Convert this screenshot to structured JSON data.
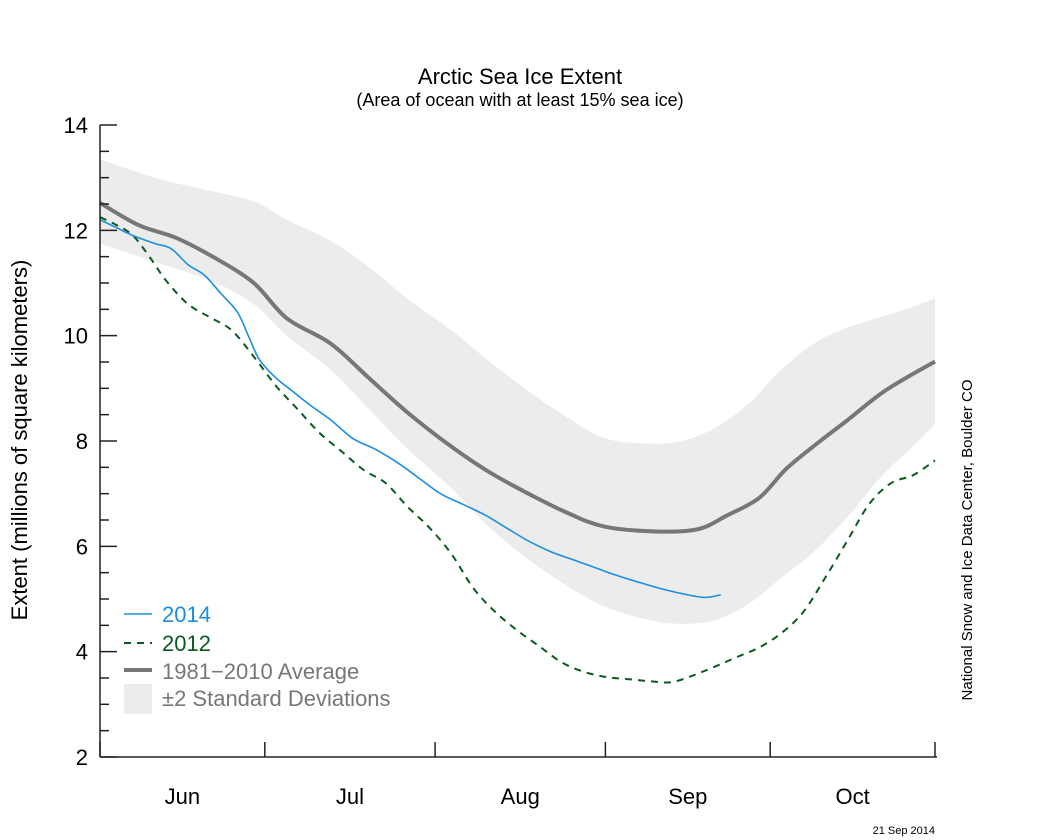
{
  "chart_data": {
    "type": "line",
    "title": "Arctic Sea Ice Extent",
    "subtitle": "(Area of ocean with at least 15% sea ice)",
    "xlabel": "",
    "ylabel": "Extent (millions of square kilometers)",
    "x_unit": "days since Jun 1",
    "xlim": [
      0,
      152
    ],
    "ylim": [
      2,
      14
    ],
    "y_major_ticks": [
      2,
      4,
      6,
      8,
      10,
      12,
      14
    ],
    "y_minor_step": 0.5,
    "x_ticks": [
      0,
      30,
      61,
      92,
      122,
      152
    ],
    "x_tick_labels": [
      {
        "label": "Jun",
        "center": 15
      },
      {
        "label": "Jul",
        "center": 45.5
      },
      {
        "label": "Aug",
        "center": 76.5
      },
      {
        "label": "Sep",
        "center": 107
      },
      {
        "label": "Oct",
        "center": 137
      }
    ],
    "grid": false,
    "legend_position": "bottom-left",
    "credit": "National Snow and Ice Data Center, Boulder CO",
    "date_stamp": "21 Sep 2014",
    "colors": {
      "2014": "#1a8fe3",
      "2012": "#0b5a1f",
      "average": "#777777",
      "band": "#ececec"
    },
    "series": [
      {
        "name": "2014",
        "style": "solid",
        "x": [
          0,
          3,
          6,
          10,
          13,
          16,
          19,
          22,
          25,
          27,
          29,
          32,
          35,
          38,
          42,
          46,
          50,
          54,
          58,
          62,
          66,
          70,
          74,
          78,
          82,
          86,
          90,
          94,
          98,
          102,
          106,
          110,
          113
        ],
        "y": [
          12.2,
          12.05,
          11.9,
          11.75,
          11.65,
          11.35,
          11.15,
          10.8,
          10.45,
          10.0,
          9.55,
          9.2,
          8.95,
          8.7,
          8.4,
          8.05,
          7.85,
          7.6,
          7.3,
          7.0,
          6.8,
          6.6,
          6.35,
          6.1,
          5.9,
          5.75,
          5.6,
          5.45,
          5.32,
          5.2,
          5.1,
          5.03,
          5.08
        ]
      },
      {
        "name": "2012",
        "style": "dashed",
        "x": [
          0,
          3,
          6,
          9,
          12,
          16,
          20,
          24,
          28,
          32,
          36,
          40,
          44,
          48,
          52,
          56,
          60,
          64,
          68,
          72,
          76,
          80,
          84,
          88,
          92,
          96,
          100,
          104,
          108,
          112,
          116,
          120,
          124,
          128,
          132,
          136,
          140,
          144,
          148,
          152
        ],
        "y": [
          12.25,
          12.1,
          11.9,
          11.5,
          11.05,
          10.6,
          10.35,
          10.1,
          9.6,
          9.05,
          8.6,
          8.15,
          7.8,
          7.45,
          7.2,
          6.75,
          6.35,
          5.85,
          5.2,
          4.75,
          4.4,
          4.1,
          3.8,
          3.62,
          3.52,
          3.48,
          3.44,
          3.42,
          3.55,
          3.72,
          3.9,
          4.08,
          4.35,
          4.75,
          5.4,
          6.1,
          6.8,
          7.2,
          7.35,
          7.63
        ]
      },
      {
        "name": "1981−2010 Average",
        "style": "thick",
        "x": [
          0,
          7,
          14,
          21,
          28,
          34,
          42,
          49,
          56,
          64,
          71,
          78,
          85,
          92,
          102,
          109,
          114,
          120,
          125,
          131,
          136,
          143,
          152
        ],
        "y": [
          12.52,
          12.1,
          11.85,
          11.47,
          11.0,
          10.33,
          9.85,
          9.19,
          8.54,
          7.89,
          7.4,
          7.0,
          6.64,
          6.37,
          6.28,
          6.33,
          6.58,
          6.92,
          7.48,
          7.99,
          8.39,
          8.96,
          9.51
        ]
      }
    ],
    "band": {
      "name": "±2 Standard Deviations",
      "x": [
        0,
        10,
        20,
        28,
        34,
        42,
        49,
        56,
        64,
        71,
        78,
        85,
        92,
        100,
        106,
        112,
        118,
        124,
        130,
        136,
        142,
        148,
        152
      ],
      "upper": [
        13.35,
        13.0,
        12.75,
        12.55,
        12.2,
        11.8,
        11.3,
        10.7,
        10.1,
        9.5,
        8.95,
        8.45,
        8.05,
        7.95,
        8.0,
        8.25,
        8.7,
        9.35,
        9.85,
        10.15,
        10.35,
        10.55,
        10.71
      ],
      "lower": [
        11.75,
        11.4,
        11.05,
        10.6,
        10.0,
        9.35,
        8.6,
        7.85,
        7.1,
        6.35,
        5.75,
        5.25,
        4.85,
        4.6,
        4.53,
        4.6,
        4.9,
        5.4,
        5.9,
        6.55,
        7.3,
        7.9,
        8.31
      ]
    },
    "legend": [
      {
        "label": "2014",
        "style": "solid",
        "color": "#1a8fe3"
      },
      {
        "label": "2012",
        "style": "dashed",
        "color": "#0b5a1f"
      },
      {
        "label": "1981−2010 Average",
        "style": "thick",
        "color": "#777777"
      },
      {
        "label": "±2 Standard Deviations",
        "style": "box",
        "color": "#ececec"
      }
    ]
  }
}
